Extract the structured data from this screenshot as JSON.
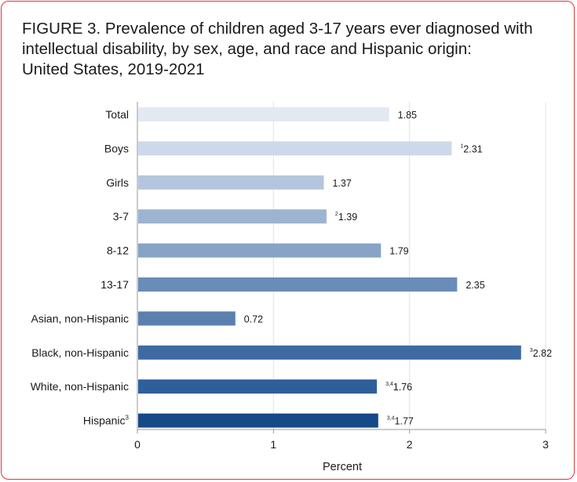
{
  "title": {
    "line1": "FIGURE 3. Prevalence of children aged 3-17 years ever diagnosed with",
    "line2": "intellectual disability, by sex, age, and race and Hispanic origin:",
    "line3": "United States, 2019-2021"
  },
  "chart_data": {
    "type": "bar",
    "orientation": "horizontal",
    "categories": [
      "Total",
      "Boys",
      "Girls",
      "3-7",
      "8-12",
      "13-17",
      "Asian, non-Hispanic",
      "Black, non-Hispanic",
      "White, non-Hispanic",
      "Hispanic"
    ],
    "category_superscripts": [
      "",
      "",
      "",
      "",
      "",
      "",
      "",
      "",
      "",
      "3"
    ],
    "values": [
      1.85,
      2.31,
      1.37,
      1.39,
      1.79,
      2.35,
      0.72,
      2.82,
      1.76,
      1.77
    ],
    "value_labels": [
      "1.85",
      "2.31",
      "1.37",
      "1.39",
      "1.79",
      "2.35",
      "0.72",
      "2.82",
      "1.76",
      "1.77"
    ],
    "value_superscripts": [
      "",
      "1",
      "",
      "2",
      "",
      "",
      "",
      "3",
      "3,4",
      "3,4"
    ],
    "bar_colors": [
      "#e3e9f2",
      "#cdd9e8",
      "#b4c6dd",
      "#9db4d1",
      "#87a3c5",
      "#6a8cb8",
      "#5a80b0",
      "#3d6ba1",
      "#2f5f9a",
      "#154987"
    ],
    "xlabel": "Percent",
    "xlim": [
      0,
      3
    ],
    "xticks": [
      "0",
      "1",
      "2",
      "3"
    ],
    "grid": true
  }
}
